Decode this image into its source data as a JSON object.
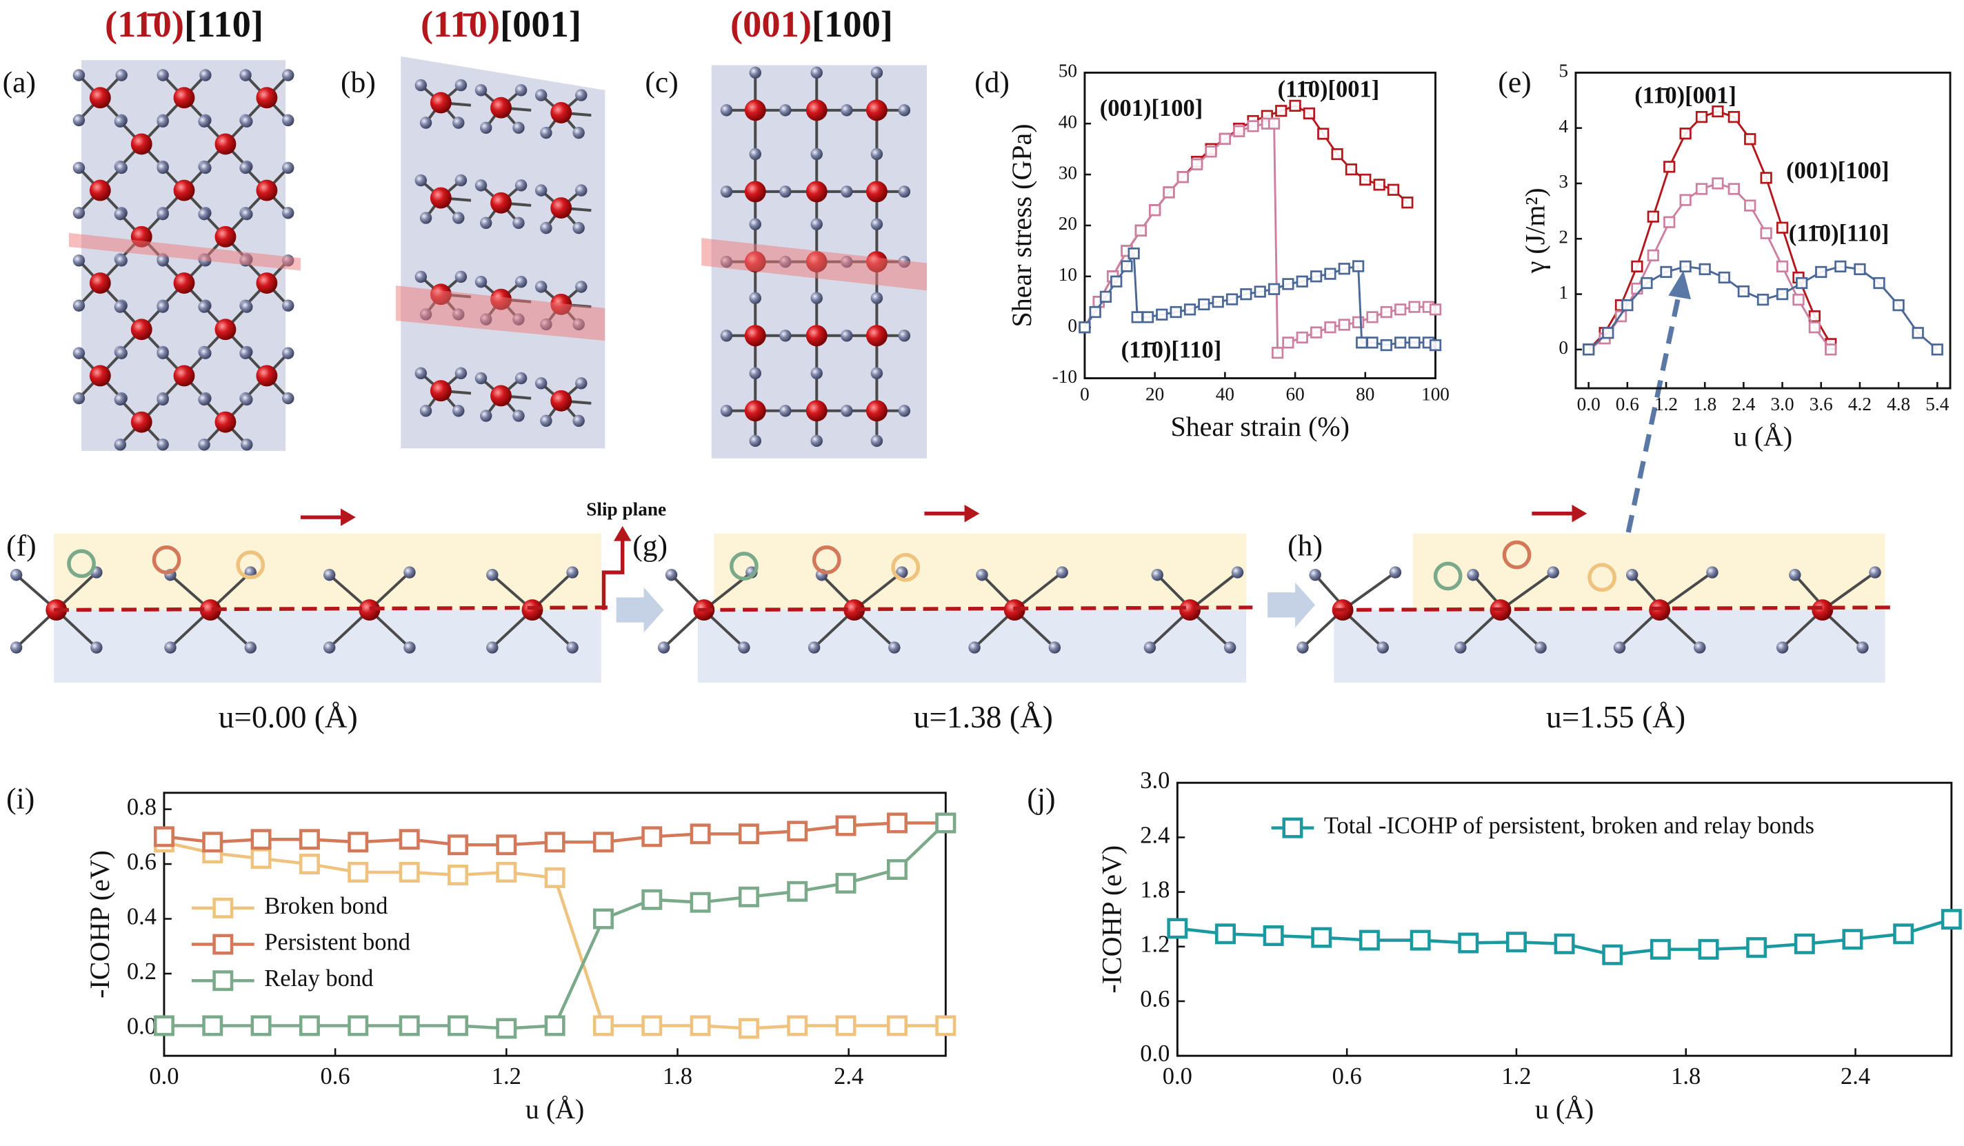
{
  "panel_labels": [
    "(a)",
    "(b)",
    "(c)",
    "(d)",
    "(e)",
    "(f)",
    "(g)",
    "(h)",
    "(i)",
    "(j)"
  ],
  "structures": [
    {
      "plane": "(11̄0)",
      "direction": "[110]"
    },
    {
      "plane": "(11̄0)",
      "direction": "[001]"
    },
    {
      "plane": "(001)",
      "direction": "[100]"
    }
  ],
  "slip_plane": "Slip plane",
  "snapshots": [
    "u=0.00 (Å)",
    "u=1.38 (Å)",
    "u=1.55 (Å)"
  ],
  "chart_data": [
    {
      "type": "line",
      "marker": "square",
      "x_label": "Shear strain (%)",
      "y_label": "Shear stress (GPa)",
      "xlim": [
        0,
        100
      ],
      "xticks": [
        0,
        20,
        40,
        60,
        80,
        100
      ],
      "ylim": [
        -10,
        50
      ],
      "yticks": [
        -10,
        0,
        10,
        20,
        30,
        40,
        50
      ],
      "series": [
        {
          "name": "(11̄0)[001]",
          "color": "#b5161c",
          "x": [
            0,
            4,
            8,
            12,
            16,
            20,
            24,
            28,
            32,
            36,
            40,
            44,
            48,
            52,
            56,
            60,
            64,
            68,
            72,
            76,
            80,
            84,
            88,
            92
          ],
          "values": [
            0,
            5,
            10,
            15,
            19,
            23,
            26.5,
            29.5,
            32.5,
            35,
            37,
            39,
            40.5,
            41.5,
            42.5,
            43.5,
            42,
            38,
            34,
            31,
            29,
            28,
            27,
            24.5
          ]
        },
        {
          "name": "(001)[100]",
          "color": "#cc7fa0",
          "x": [
            0,
            4,
            8,
            12,
            16,
            20,
            24,
            28,
            32,
            36,
            40,
            44,
            48,
            52,
            54,
            55,
            58,
            62,
            66,
            70,
            74,
            78,
            82,
            86,
            90,
            94,
            98,
            100
          ],
          "values": [
            0,
            5,
            10,
            15,
            19,
            23,
            26.5,
            29.5,
            32,
            34.5,
            37,
            38.5,
            39.5,
            40,
            40,
            -5,
            -3,
            -2,
            -1,
            0,
            0.5,
            1,
            2,
            3,
            3.5,
            4,
            4,
            3.5
          ]
        },
        {
          "name": "(11̄0)[110]",
          "color": "#4a6796",
          "x": [
            0,
            3,
            6,
            9,
            12,
            14,
            15,
            18,
            22,
            26,
            30,
            34,
            38,
            42,
            46,
            50,
            54,
            58,
            62,
            66,
            70,
            74,
            78,
            79,
            82,
            86,
            90,
            94,
            98,
            100
          ],
          "values": [
            0,
            3,
            6,
            9,
            12,
            14.5,
            2,
            2,
            2.5,
            3,
            3.5,
            4.5,
            5,
            5.5,
            6.5,
            7,
            7.5,
            8.5,
            9,
            10,
            10.5,
            11.5,
            12,
            -3,
            -3,
            -3.5,
            -3,
            -3,
            -3,
            -3.5
          ]
        }
      ]
    },
    {
      "type": "line",
      "marker": "square",
      "x_label": "u (Å)",
      "y_label": "γ (J/m²)",
      "xlim": [
        -0.2,
        5.6
      ],
      "xticks": [
        {
          "value": 0,
          "label": "0.0"
        },
        0.6,
        1.2,
        1.8,
        2.4,
        {
          "value": 3,
          "label": "3.0"
        },
        3.6,
        4.2,
        4.8,
        5.4
      ],
      "ylim": [
        -0.7,
        5
      ],
      "yticks": [
        0,
        1,
        2,
        3,
        4,
        5
      ],
      "series": [
        {
          "name": "(11̄0)[001]",
          "color": "#b5161c",
          "x": [
            0,
            0.25,
            0.5,
            0.75,
            1,
            1.25,
            1.5,
            1.75,
            2,
            2.25,
            2.5,
            2.75,
            3,
            3.25,
            3.5,
            3.75
          ],
          "values": [
            0,
            0.3,
            0.8,
            1.5,
            2.4,
            3.3,
            3.9,
            4.2,
            4.3,
            4.2,
            3.8,
            3.1,
            2.2,
            1.3,
            0.6,
            0.1
          ]
        },
        {
          "name": "(001)[100]",
          "color": "#cc7fa0",
          "x": [
            0,
            0.25,
            0.5,
            0.75,
            1,
            1.25,
            1.5,
            1.75,
            2,
            2.25,
            2.5,
            2.75,
            3,
            3.25,
            3.5,
            3.75
          ],
          "values": [
            0,
            0.2,
            0.6,
            1.1,
            1.7,
            2.3,
            2.7,
            2.9,
            3,
            2.9,
            2.6,
            2.1,
            1.5,
            0.9,
            0.4,
            0
          ]
        },
        {
          "name": "(11̄0)[110]",
          "color": "#4a6796",
          "x": [
            0,
            0.3,
            0.6,
            0.9,
            1.2,
            1.5,
            1.8,
            2.1,
            2.4,
            2.7,
            3,
            3.3,
            3.6,
            3.9,
            4.2,
            4.5,
            4.8,
            5.1,
            5.4
          ],
          "values": [
            0,
            0.3,
            0.8,
            1.2,
            1.4,
            1.5,
            1.45,
            1.3,
            1.05,
            0.9,
            1,
            1.2,
            1.4,
            1.5,
            1.45,
            1.2,
            0.8,
            0.3,
            0
          ]
        }
      ]
    },
    {
      "type": "line",
      "marker": "square",
      "legend": "center left",
      "x_label": "u (Å)",
      "y_label": "-ICOHP (eV)",
      "xlim": [
        0,
        2.74
      ],
      "xticks": [
        {
          "value": 0,
          "label": "0.0"
        },
        0.6,
        1.2,
        1.8,
        2.4
      ],
      "ylim": [
        -0.1,
        0.86
      ],
      "yticks": [
        {
          "value": 0,
          "label": "0.0"
        },
        0.2,
        0.4,
        0.6,
        0.8
      ],
      "x": [
        0,
        0.17,
        0.34,
        0.51,
        0.68,
        0.86,
        1.03,
        1.2,
        1.37,
        1.54,
        1.71,
        1.88,
        2.05,
        2.22,
        2.39,
        2.57,
        2.74
      ],
      "series": [
        {
          "name": "Broken bond",
          "color": "#efc27e",
          "values": [
            0.68,
            0.64,
            0.62,
            0.6,
            0.57,
            0.57,
            0.56,
            0.57,
            0.55,
            0.01,
            0.01,
            0.01,
            0,
            0.01,
            0.01,
            0.01,
            0.01
          ]
        },
        {
          "name": "Persistent bond",
          "color": "#d4785a",
          "values": [
            0.7,
            0.68,
            0.69,
            0.69,
            0.68,
            0.69,
            0.67,
            0.67,
            0.68,
            0.68,
            0.7,
            0.71,
            0.71,
            0.72,
            0.74,
            0.75,
            0.75
          ]
        },
        {
          "name": "Relay bond",
          "color": "#7aaa8a",
          "values": [
            0.01,
            0.01,
            0.01,
            0.01,
            0.01,
            0.01,
            0.01,
            0,
            0.01,
            0.4,
            0.47,
            0.46,
            0.48,
            0.5,
            0.53,
            0.58,
            0.75
          ]
        }
      ]
    },
    {
      "type": "line",
      "marker": "square",
      "legend": "upper left",
      "x_label": "u (Å)",
      "y_label": "-ICOHP (eV)",
      "xlim": [
        0,
        2.74
      ],
      "xticks": [
        {
          "value": 0,
          "label": "0.0"
        },
        0.6,
        1.2,
        1.8,
        2.4
      ],
      "ylim": [
        0,
        3
      ],
      "yticks": [
        {
          "value": 0,
          "label": "0.0"
        },
        0.6,
        1.2,
        1.8,
        2.4,
        {
          "value": 3,
          "label": "3.0"
        }
      ],
      "x": [
        0,
        0.17,
        0.34,
        0.51,
        0.68,
        0.86,
        1.03,
        1.2,
        1.37,
        1.54,
        1.71,
        1.88,
        2.05,
        2.22,
        2.39,
        2.57,
        2.74
      ],
      "series": [
        {
          "name": "Total -ICOHP of persistent, broken and relay bonds",
          "color": "#1a9aa0",
          "values": [
            1.4,
            1.34,
            1.32,
            1.3,
            1.27,
            1.27,
            1.24,
            1.25,
            1.23,
            1.11,
            1.17,
            1.17,
            1.19,
            1.23,
            1.28,
            1.34,
            1.5
          ]
        }
      ]
    }
  ]
}
